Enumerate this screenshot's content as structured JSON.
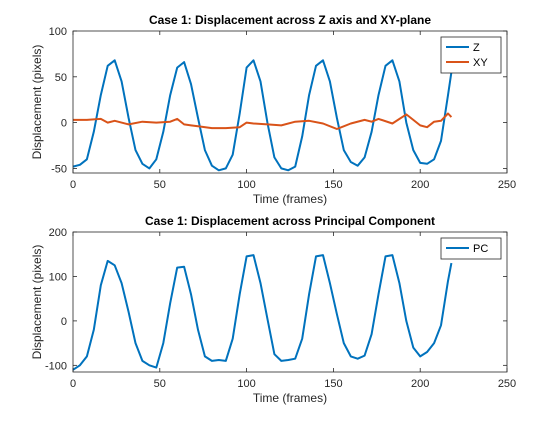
{
  "chart_data": [
    {
      "type": "line",
      "title": "Case 1: Displacement across Z axis and XY-plane",
      "xlabel": "Time (frames)",
      "ylabel": "Displacement (pixels)",
      "xlim": [
        0,
        250
      ],
      "ylim": [
        -55,
        100
      ],
      "xticks": [
        0,
        50,
        100,
        150,
        200,
        250
      ],
      "yticks": [
        -50,
        0,
        50,
        100
      ],
      "grid": false,
      "legend_position": "top-right",
      "series": [
        {
          "name": "Z",
          "color": "#0072BD",
          "x": [
            0,
            4,
            8,
            12,
            16,
            20,
            24,
            28,
            32,
            36,
            40,
            44,
            48,
            52,
            56,
            60,
            64,
            68,
            72,
            76,
            80,
            84,
            88,
            92,
            96,
            100,
            104,
            108,
            112,
            116,
            120,
            124,
            128,
            132,
            136,
            140,
            144,
            148,
            152,
            156,
            160,
            164,
            168,
            172,
            176,
            180,
            184,
            188,
            192,
            196,
            200,
            204,
            208,
            212,
            216,
            218
          ],
          "values": [
            -48,
            -46,
            -40,
            -10,
            30,
            62,
            68,
            45,
            5,
            -30,
            -45,
            -50,
            -40,
            -10,
            30,
            60,
            66,
            42,
            5,
            -30,
            -47,
            -52,
            -50,
            -35,
            10,
            60,
            68,
            45,
            0,
            -38,
            -50,
            -52,
            -48,
            -15,
            30,
            62,
            68,
            45,
            5,
            -30,
            -43,
            -47,
            -38,
            -10,
            30,
            62,
            68,
            45,
            0,
            -30,
            -44,
            -45,
            -40,
            -20,
            30,
            55
          ]
        },
        {
          "name": "XY",
          "color": "#D95319",
          "x": [
            0,
            8,
            16,
            20,
            24,
            32,
            40,
            48,
            56,
            60,
            64,
            68,
            72,
            80,
            88,
            96,
            100,
            104,
            112,
            120,
            128,
            136,
            144,
            152,
            160,
            168,
            172,
            176,
            184,
            192,
            196,
            200,
            204,
            208,
            212,
            216,
            218
          ],
          "values": [
            3,
            3,
            4,
            0,
            2,
            -2,
            1,
            0,
            1,
            4,
            -2,
            -3,
            -4,
            -6,
            -6,
            -5,
            0,
            -1,
            -2,
            -3,
            1,
            2,
            -1,
            -7,
            -1,
            3,
            1,
            4,
            -1,
            9,
            3,
            -3,
            -5,
            1,
            2,
            10,
            6
          ]
        }
      ]
    },
    {
      "type": "line",
      "title": "Case 1: Displacement across Principal Component",
      "xlabel": "Time (frames)",
      "ylabel": "Displacement (pixels)",
      "xlim": [
        0,
        250
      ],
      "ylim": [
        -115,
        200
      ],
      "xticks": [
        0,
        50,
        100,
        150,
        200,
        250
      ],
      "yticks": [
        -100,
        0,
        100,
        200
      ],
      "grid": false,
      "legend_position": "top-right",
      "series": [
        {
          "name": "PC",
          "color": "#0072BD",
          "x": [
            0,
            4,
            8,
            12,
            16,
            20,
            24,
            28,
            32,
            36,
            40,
            44,
            48,
            52,
            56,
            60,
            64,
            68,
            72,
            76,
            80,
            84,
            88,
            92,
            96,
            100,
            104,
            108,
            112,
            116,
            120,
            124,
            128,
            132,
            136,
            140,
            144,
            148,
            152,
            156,
            160,
            164,
            168,
            172,
            176,
            180,
            184,
            188,
            192,
            196,
            200,
            204,
            208,
            212,
            216,
            218
          ],
          "values": [
            -110,
            -100,
            -80,
            -20,
            80,
            135,
            125,
            85,
            20,
            -50,
            -90,
            -100,
            -105,
            -50,
            40,
            120,
            122,
            60,
            -20,
            -80,
            -90,
            -88,
            -90,
            -40,
            60,
            145,
            148,
            85,
            5,
            -75,
            -90,
            -88,
            -85,
            -40,
            60,
            145,
            148,
            85,
            15,
            -50,
            -80,
            -85,
            -78,
            -30,
            60,
            145,
            148,
            85,
            0,
            -60,
            -80,
            -70,
            -50,
            -10,
            90,
            130
          ]
        }
      ]
    }
  ]
}
